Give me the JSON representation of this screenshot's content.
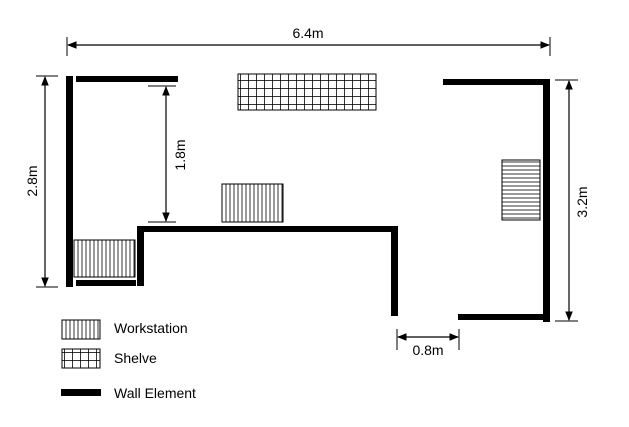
{
  "dimensions": {
    "total_width": "6.4m",
    "left_height": "2.8m",
    "inner_height": "1.8m",
    "right_height": "3.2m",
    "gap_width": "0.8m"
  },
  "legend": {
    "workstation": "Workstation",
    "shelve": "Shelve",
    "wall": "Wall Element"
  },
  "colors": {
    "wall": "#000000",
    "line": "#000000",
    "background": "#ffffff"
  }
}
